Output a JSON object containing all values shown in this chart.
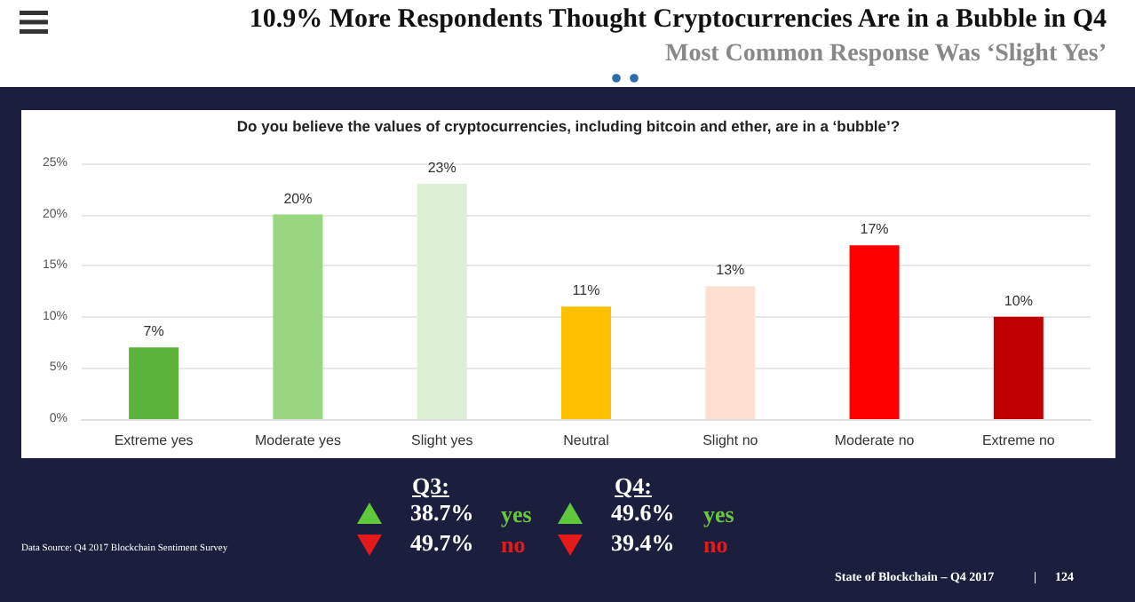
{
  "chart_data": {
    "type": "bar",
    "title": "10.9% More Respondents Thought Cryptocurrencies Are in a Bubble in Q4",
    "subtitle": "Most Common Response Was ‘Slight Yes’",
    "categories": [
      "Extreme yes",
      "Moderate yes",
      "Slight yes",
      "Neutral",
      "Slight no",
      "Moderate no",
      "Extreme no"
    ],
    "values": [
      7,
      20,
      23,
      11,
      13,
      17,
      10
    ],
    "value_labels": [
      "7%",
      "20%",
      "23%",
      "11%",
      "13%",
      "17%",
      "10%"
    ],
    "colors": [
      "#5bb33a",
      "#98d67f",
      "#dcefd5",
      "#ffc000",
      "#fde0d2",
      "#ff0000",
      "#c00000"
    ],
    "ylim": [
      0,
      25
    ],
    "yticks": [
      {
        "value": 0,
        "label": "0%"
      },
      {
        "value": 5,
        "label": "5%"
      },
      {
        "value": 10,
        "label": "10%"
      },
      {
        "value": 15,
        "label": "15%"
      },
      {
        "value": 20,
        "label": "20%"
      },
      {
        "value": 25,
        "label": "25%"
      }
    ],
    "grid": "y",
    "annotations": [
      "Do you believe the values of cryptocurrencies, including bitcoin and ether, are in a ‘bubble’?",
      "Q3:",
      "38.7%",
      "yes",
      "49.7%",
      "no",
      "Q4:",
      "49.6%",
      "yes",
      "39.4%",
      "no",
      "Data Source: Q4 2017 Blockchain Sentiment Survey",
      "State of Blockchain – Q4 2017",
      "|",
      "124"
    ]
  }
}
